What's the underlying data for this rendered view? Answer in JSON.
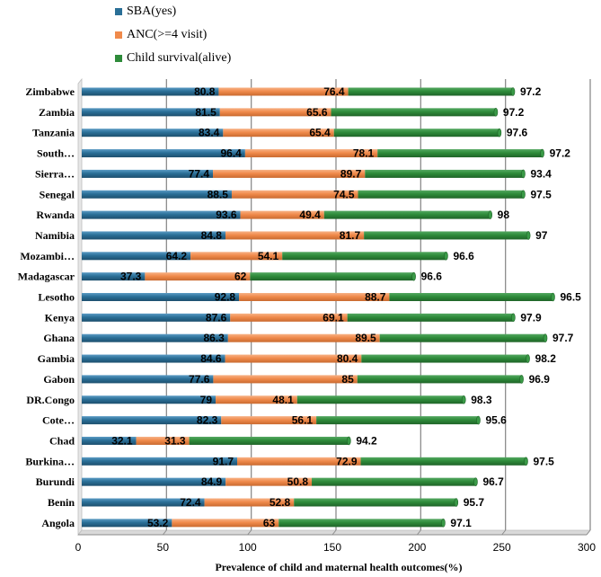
{
  "chart_data": {
    "type": "bar",
    "orientation": "horizontal",
    "stacked": true,
    "title": "",
    "xlabel": "Prevalence of child and maternal health outcomes(%)",
    "ylabel": "",
    "xlim": [
      0,
      300
    ],
    "xticks": [
      0,
      50,
      100,
      150,
      200,
      250,
      300
    ],
    "grid": true,
    "legend_position": "top",
    "categories": [
      "Zimbabwe",
      "Zambia",
      "Tanzania",
      "South…",
      "Sierra…",
      "Senegal",
      "Rwanda",
      "Namibia",
      "Mozambi…",
      "Madagascar",
      "Lesotho",
      "Kenya",
      "Ghana",
      "Gambia",
      "Gabon",
      "DR.Congo",
      "Cote…",
      "Chad",
      "Burkina…",
      "Burundi",
      "Benin",
      "Angola"
    ],
    "series": [
      {
        "name": "SBA(yes)",
        "color": "#2a6f97",
        "values": [
          80.8,
          81.5,
          83.4,
          96.4,
          77.4,
          88.5,
          93.6,
          84.8,
          64.2,
          37.3,
          92.8,
          87.6,
          86.3,
          84.6,
          77.6,
          79,
          82.3,
          32.1,
          91.7,
          84.9,
          72.4,
          53.2
        ]
      },
      {
        "name": "ANC(>=4 visit)",
        "color": "#f08a4b",
        "values": [
          76.4,
          65.6,
          65.4,
          78.1,
          89.7,
          74.5,
          49.4,
          81.7,
          54.1,
          62,
          88.7,
          69.1,
          89.5,
          80.4,
          85,
          48.1,
          56.1,
          31.3,
          72.9,
          50.8,
          52.8,
          63
        ]
      },
      {
        "name": "Child survival(alive)",
        "color": "#2e8b3a",
        "values": [
          97.2,
          97.2,
          97.6,
          97.2,
          93.4,
          97.5,
          98,
          97,
          96.6,
          96.6,
          96.5,
          97.9,
          97.7,
          98.2,
          96.9,
          98.3,
          95.6,
          94.2,
          97.5,
          96.7,
          95.7,
          97.1
        ]
      }
    ]
  }
}
